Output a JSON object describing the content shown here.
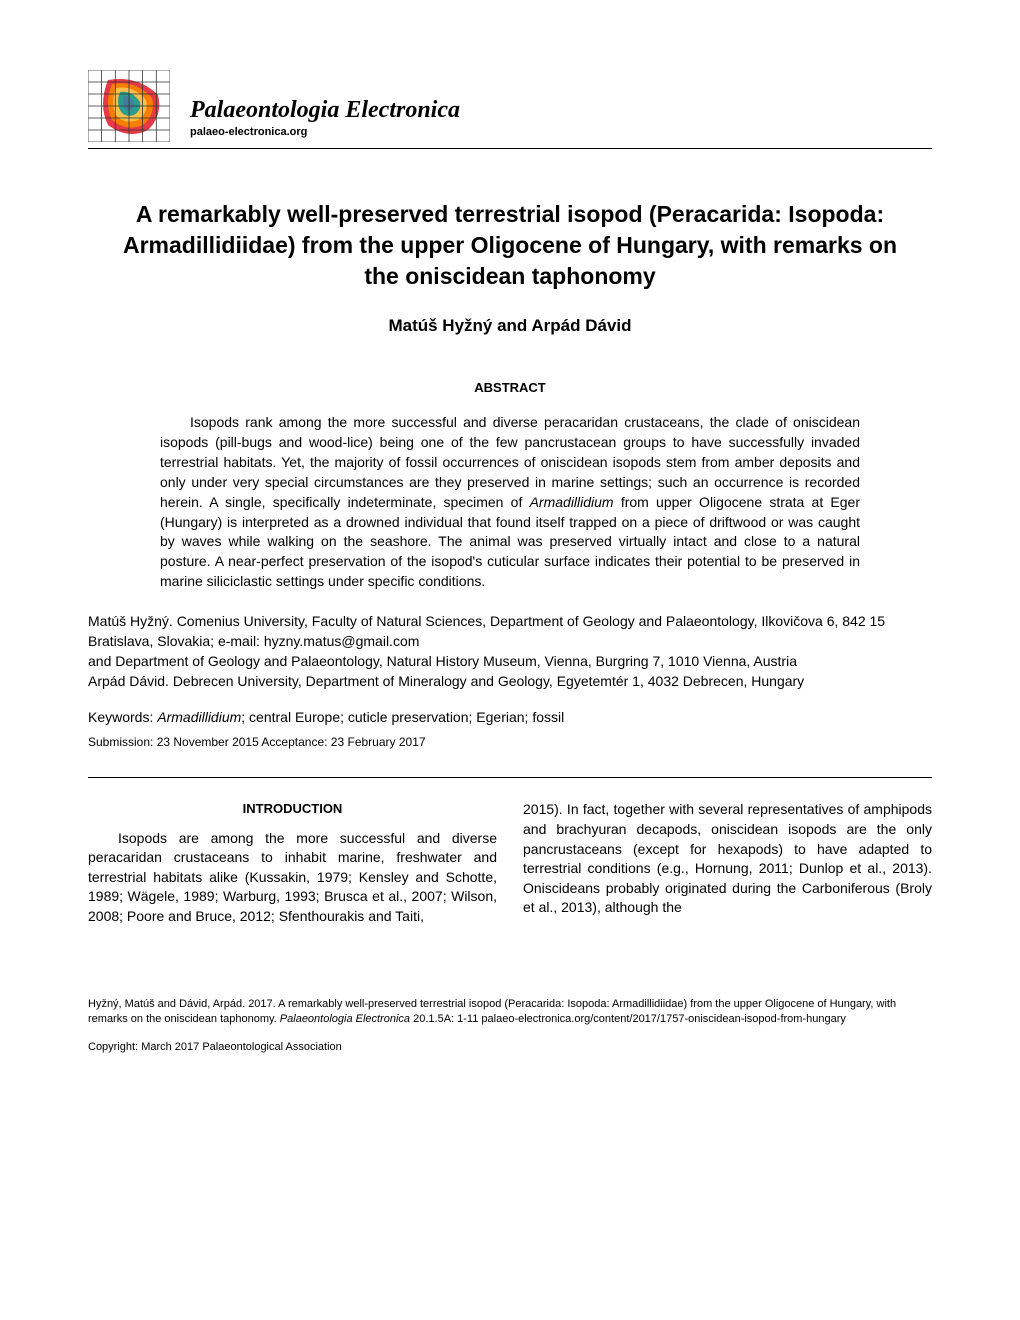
{
  "journal": {
    "title": "Palaeontologia Electronica",
    "url": "palaeo-electronica.org"
  },
  "article": {
    "title": "A remarkably well-preserved terrestrial isopod (Peracarida: Isopoda: Armadillidiidae) from the upper Oligocene of Hungary, with remarks on the oniscidean taphonomy",
    "authors": "Matúš Hyžný and Arpád Dávid",
    "abstract_heading": "ABSTRACT",
    "abstract": "Isopods rank among the more successful and diverse peracaridan crustaceans, the clade of oniscidean isopods (pill-bugs and wood-lice) being one of the few pancrustacean groups to have successfully invaded terrestrial habitats. Yet, the majority of fossil occurrences of oniscidean isopods stem from amber deposits and only under very special circumstances are they preserved in marine settings; such an occurrence is recorded herein. A single, specifically indeterminate, specimen of Armadillidium from upper Oligocene strata at Eger (Hungary) is interpreted as a drowned individual that found itself trapped on a piece of driftwood or was caught by waves while walking on the seashore. The animal was preserved virtually intact and close to a natural posture. A near-perfect preservation of the isopod's cuticular surface indicates their potential to be preserved in marine siliciclastic settings under specific conditions.",
    "affiliations": "Matúš Hyžný. Comenius University, Faculty of Natural Sciences, Department of Geology and Palaeontology, Ilkovičova 6, 842 15 Bratislava, Slovakia; e-mail: hyzny.matus@gmail.com\nand Department of Geology and Palaeontology, Natural History Museum, Vienna, Burgring 7, 1010 Vienna, Austria\nArpád Dávid. Debrecen University, Department of Mineralogy and Geology, Egyetemtér 1, 4032 Debrecen, Hungary",
    "keywords_label": "Keywords: ",
    "keywords": "Armadillidium; central Europe; cuticle preservation; Egerian; fossil",
    "submission": "Submission: 23 November 2015 Acceptance: 23 February 2017",
    "section_heading": "INTRODUCTION",
    "column_left": "Isopods are among the more successful and diverse peracaridan crustaceans to inhabit marine, freshwater and terrestrial habitats alike (Kussakin, 1979; Kensley and Schotte, 1989; Wägele, 1989; Warburg, 1993; Brusca et al., 2007; Wilson, 2008; Poore and Bruce, 2012; Sfenthourakis and Taiti,",
    "column_right": "2015). In fact, together with several representatives of amphipods and brachyuran decapods, oniscidean isopods are the only pancrustaceans (except for hexapods) to have adapted to terrestrial conditions (e.g., Hornung, 2011; Dunlop et al., 2013). Oniscideans probably originated during the Carboniferous (Broly et al., 2013), although the"
  },
  "footer": {
    "citation": "Hyžný, Matúš and Dávid, Arpád. 2017. A remarkably well-preserved terrestrial isopod (Peracarida: Isopoda: Armadillidiidae) from the upper Oligocene of Hungary, with remarks on the oniscidean taphonomy. Palaeontologia Electronica 20.1.5A: 1-11 palaeo-electronica.org/content/2017/1757-oniscidean-isopod-from-hungary",
    "copyright": "Copyright: March 2017 Palaeontological Association"
  },
  "logo": {
    "colors": {
      "red": "#e63946",
      "orange": "#f77f00",
      "yellow": "#fcbf49",
      "green": "#2a9d8f",
      "blue": "#457b9d",
      "grid": "#333333"
    }
  }
}
